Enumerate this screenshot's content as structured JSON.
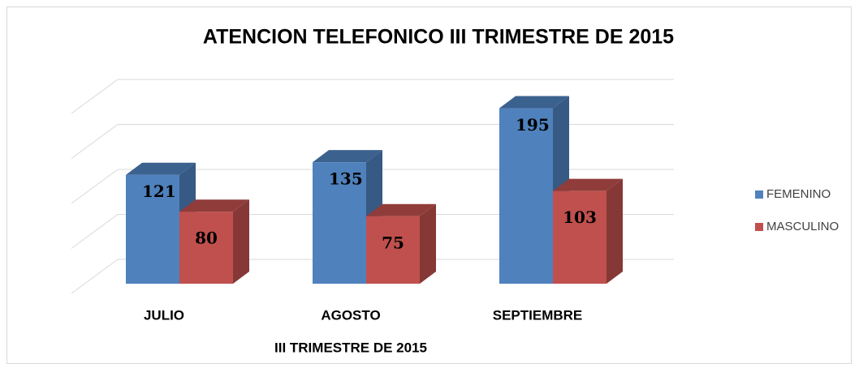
{
  "chart_data": {
    "type": "bar3d",
    "title": "ATENCION TELEFONICO III TRIMESTRE DE 2015",
    "x_label": "III TRIMESTRE DE 2015",
    "categories": [
      "JULIO",
      "AGOSTO",
      "SEPTIEMBRE"
    ],
    "series": [
      {
        "name": "FEMENINO",
        "color": "#4f81bd",
        "values": [
          121,
          135,
          195
        ]
      },
      {
        "name": "MASCULINO",
        "color": "#c0504d",
        "values": [
          80,
          75,
          103
        ]
      }
    ],
    "ylim": [
      0,
      200
    ],
    "yticks": [
      0,
      50,
      100,
      150,
      200
    ],
    "grid": true,
    "legend": "right"
  }
}
